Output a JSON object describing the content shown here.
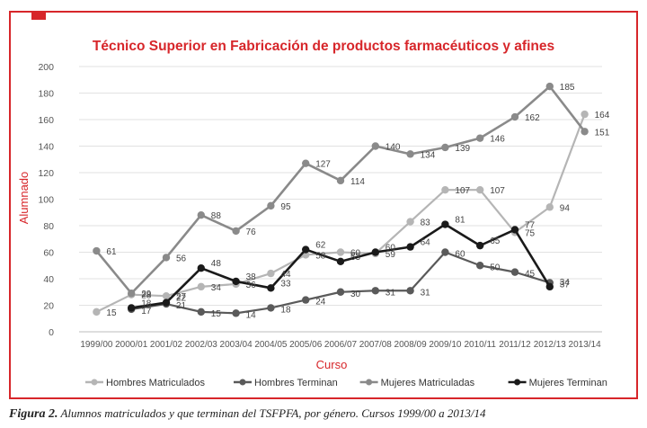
{
  "caption": {
    "label": "Figura 2.",
    "text": " Alumnos matriculados y que terminan del TSFPFA, por género. Cursos 1999/00 a 2013/14"
  },
  "colors": {
    "frame": "#d7262a",
    "title": "#d7262a",
    "axis_label": "#d7262a"
  },
  "chart_data": {
    "type": "line",
    "title": "Técnico Superior en Fabricación de productos farmacéuticos y afines",
    "xlabel": "Curso",
    "ylabel": "Alumnado",
    "ylim": [
      0,
      200
    ],
    "yticks": [
      0,
      20,
      40,
      60,
      80,
      100,
      120,
      140,
      160,
      180,
      200
    ],
    "grid": true,
    "legend_position": "bottom",
    "categories": [
      "1999/00",
      "2000/01",
      "2001/02",
      "2002/03",
      "2003/04",
      "2004/05",
      "2005/06",
      "2006/07",
      "2007/08",
      "2008/09",
      "2009/10",
      "2010/11",
      "2011/12",
      "2012/13",
      "2013/14"
    ],
    "series": [
      {
        "name": "Hombres Matriculados",
        "color": "#b5b5b5",
        "values": [
          15,
          28,
          27,
          34,
          36,
          44,
          58,
          60,
          59,
          83,
          107,
          107,
          75,
          94,
          164
        ],
        "labels": [
          "15",
          "28",
          "27",
          "34",
          "36",
          "44",
          "58",
          "60",
          "59",
          "83",
          "107",
          "107",
          "75",
          "94",
          "164"
        ]
      },
      {
        "name": "Hombres Terminan",
        "color": "#5a5a5a",
        "values": [
          null,
          17,
          21,
          15,
          14,
          18,
          24,
          30,
          31,
          31,
          60,
          50,
          45,
          37,
          null
        ],
        "labels": [
          "",
          "17",
          "21",
          "15",
          "14",
          "18",
          "24",
          "30",
          "31",
          "31",
          "60",
          "50",
          "45",
          "37",
          ""
        ]
      },
      {
        "name": "Mujeres Matriculadas",
        "color": "#8a8a8a",
        "values": [
          61,
          29,
          56,
          88,
          76,
          95,
          127,
          114,
          140,
          134,
          139,
          146,
          162,
          185,
          151
        ],
        "labels": [
          "61",
          "29",
          "56",
          "88",
          "76",
          "95",
          "127",
          "114",
          "140",
          "134",
          "139",
          "146",
          "162",
          "185",
          "151"
        ]
      },
      {
        "name": "Mujeres Terminan",
        "color": "#1a1a1a",
        "values": [
          null,
          18,
          22,
          48,
          38,
          33,
          62,
          53,
          60,
          64,
          81,
          65,
          77,
          34,
          null
        ],
        "labels": [
          "",
          "18",
          "22",
          "48",
          "38",
          "33",
          "62",
          "53",
          "60",
          "64",
          "81",
          "65",
          "77",
          "34",
          ""
        ]
      }
    ]
  }
}
